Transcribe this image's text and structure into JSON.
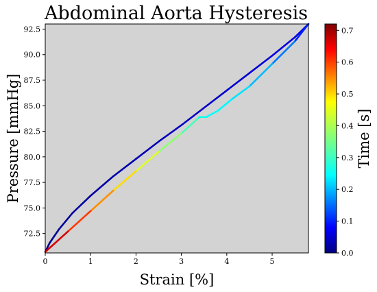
{
  "chart_data": {
    "type": "line",
    "title": "Abdominal Aorta Hysteresis",
    "xlabel": "Strain [%]",
    "ylabel": "Pressure [mmHg]",
    "xlim": [
      0,
      5.8
    ],
    "ylim": [
      70.6,
      93.0
    ],
    "xticks": [
      0,
      1,
      2,
      3,
      4,
      5
    ],
    "yticks": [
      "72.5",
      "75.0",
      "77.5",
      "80.0",
      "82.5",
      "85.0",
      "87.5",
      "90.0",
      "92.5"
    ],
    "grid": false,
    "background": "#d3d3d3",
    "colormap": "jet",
    "colorbar": {
      "label": "Time [s]",
      "range": [
        0.0,
        0.72
      ],
      "ticks": [
        "0.0",
        "0.1",
        "0.2",
        "0.3",
        "0.4",
        "0.5",
        "0.6",
        "0.7"
      ]
    },
    "series": [
      {
        "points": [
          [
            0.0,
            70.7,
            0.0
          ],
          [
            0.1,
            71.6,
            0.01
          ],
          [
            0.3,
            72.9,
            0.015
          ],
          [
            0.6,
            74.5,
            0.02
          ],
          [
            1.0,
            76.2,
            0.025
          ],
          [
            1.5,
            78.1,
            0.03
          ],
          [
            2.0,
            79.8,
            0.035
          ],
          [
            2.5,
            81.5,
            0.04
          ],
          [
            3.0,
            83.1,
            0.045
          ],
          [
            3.5,
            84.8,
            0.05
          ],
          [
            4.0,
            86.5,
            0.055
          ],
          [
            4.5,
            88.2,
            0.06
          ],
          [
            5.0,
            89.9,
            0.065
          ],
          [
            5.5,
            91.7,
            0.07
          ],
          [
            5.8,
            93.0,
            0.075
          ],
          [
            5.5,
            91.3,
            0.15
          ],
          [
            5.0,
            89.1,
            0.2
          ],
          [
            4.5,
            86.9,
            0.24
          ],
          [
            4.1,
            85.6,
            0.26
          ],
          [
            3.8,
            84.5,
            0.27
          ],
          [
            3.55,
            83.9,
            0.28
          ],
          [
            3.4,
            83.9,
            0.29
          ],
          [
            3.35,
            83.7,
            0.3
          ],
          [
            3.0,
            82.3,
            0.34
          ],
          [
            2.5,
            80.5,
            0.4
          ],
          [
            2.0,
            78.6,
            0.45
          ],
          [
            1.5,
            76.7,
            0.5
          ],
          [
            1.0,
            74.7,
            0.56
          ],
          [
            0.5,
            72.7,
            0.62
          ],
          [
            0.0,
            70.7,
            0.7
          ]
        ]
      }
    ]
  }
}
